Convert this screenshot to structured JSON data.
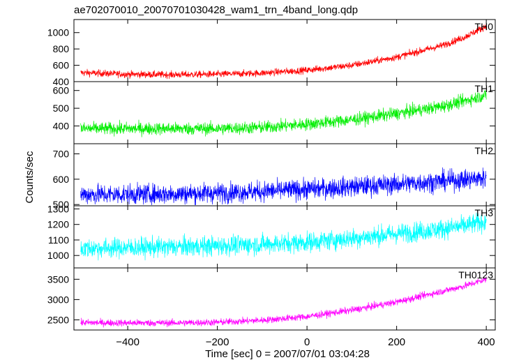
{
  "chart_data": {
    "type": "line",
    "title": "ae702070010_20070701030428_wam1_trn_4band_long.qdp",
    "xlabel": "Time [sec] 0 = 2007/07/01 03:04:28",
    "ylabel": "Counts/sec",
    "xlim": [
      -520,
      420
    ],
    "x_ticks": [
      -400,
      -200,
      0,
      200,
      400
    ],
    "x_tick_labels": [
      "−400",
      "−200",
      "0",
      "200",
      "400"
    ],
    "x_range": [
      -505,
      400
    ],
    "panels": [
      {
        "name": "TH0",
        "color": "#ff0000",
        "ylim": [
          400,
          1160
        ],
        "y_ticks": [
          400,
          600,
          800,
          1000
        ],
        "x": [
          -505,
          -400,
          -300,
          -200,
          -100,
          0,
          100,
          200,
          300,
          350,
          400
        ],
        "values": [
          510,
          490,
          485,
          490,
          505,
          540,
          600,
          700,
          840,
          940,
          1080
        ],
        "noise": 30
      },
      {
        "name": "TH1",
        "color": "#00ee00",
        "ylim": [
          300,
          650
        ],
        "y_ticks": [
          400,
          500,
          600
        ],
        "x": [
          -505,
          -400,
          -300,
          -200,
          -100,
          0,
          100,
          200,
          300,
          350,
          400
        ],
        "values": [
          385,
          385,
          385,
          385,
          392,
          410,
          435,
          470,
          510,
          540,
          575
        ],
        "noise": 25
      },
      {
        "name": "TH2",
        "color": "#0000ff",
        "ylim": [
          495,
          740
        ],
        "y_ticks": [
          500,
          600,
          700
        ],
        "x": [
          -505,
          -400,
          -300,
          -200,
          -100,
          0,
          100,
          200,
          300,
          350,
          400
        ],
        "values": [
          540,
          540,
          542,
          546,
          552,
          560,
          570,
          580,
          592,
          598,
          605
        ],
        "noise": 28
      },
      {
        "name": "TH3",
        "color": "#00ffff",
        "ylim": [
          920,
          1320
        ],
        "y_ticks": [
          1000,
          1100,
          1200,
          1300
        ],
        "x": [
          -505,
          -400,
          -300,
          -200,
          -100,
          0,
          100,
          200,
          300,
          350,
          400
        ],
        "values": [
          1045,
          1050,
          1055,
          1062,
          1072,
          1085,
          1110,
          1140,
          1170,
          1190,
          1220
        ],
        "noise": 45
      },
      {
        "name": "TH0123",
        "color": "#ff00ff",
        "ylim": [
          2250,
          3780
        ],
        "y_ticks": [
          2500,
          3000,
          3500
        ],
        "x": [
          -505,
          -400,
          -300,
          -200,
          -100,
          0,
          100,
          200,
          300,
          350,
          400
        ],
        "values": [
          2430,
          2425,
          2425,
          2440,
          2490,
          2580,
          2740,
          2940,
          3200,
          3330,
          3500
        ],
        "noise": 60
      }
    ]
  }
}
